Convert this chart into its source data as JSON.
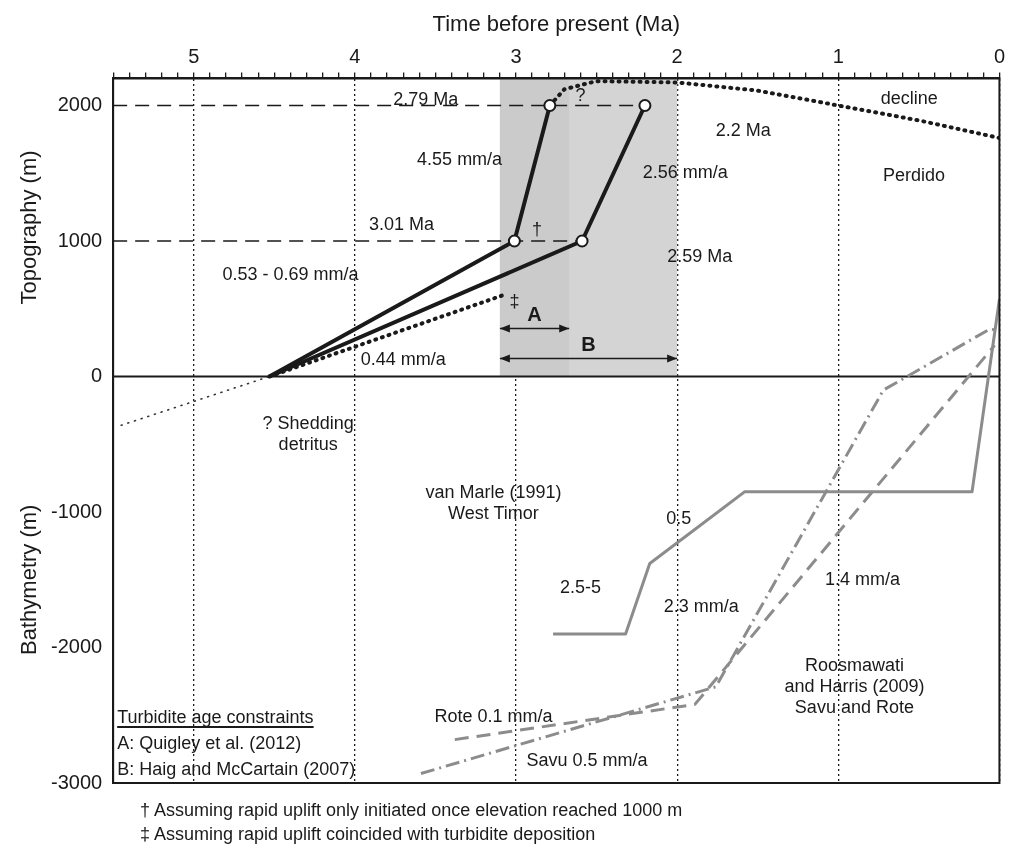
{
  "chart_data": {
    "type": "line",
    "xlabel": "Time before present (Ma)",
    "ylabel": "Topography (m)",
    "y2label": "Bathymetry (m)",
    "xlim": [
      5.5,
      0
    ],
    "xticks": [
      {
        "value": 5.5,
        "label": null
      },
      {
        "value": 5.4,
        "label": null
      },
      {
        "value": 5.3,
        "label": null
      },
      {
        "value": 5.2,
        "label": null
      },
      {
        "value": 5.1,
        "label": null
      },
      5,
      {
        "value": 4.9,
        "label": null
      },
      {
        "value": 4.8,
        "label": null
      },
      {
        "value": 4.7,
        "label": null
      },
      {
        "value": 4.6,
        "label": null
      },
      {
        "value": 4.5,
        "label": null
      },
      {
        "value": 4.4,
        "label": null
      },
      {
        "value": 4.3,
        "label": null
      },
      {
        "value": 4.2,
        "label": null
      },
      {
        "value": 4.1,
        "label": null
      },
      4,
      {
        "value": 3.9,
        "label": null
      },
      {
        "value": 3.8,
        "label": null
      },
      {
        "value": 3.7,
        "label": null
      },
      {
        "value": 3.6,
        "label": null
      },
      {
        "value": 3.5,
        "label": null
      },
      {
        "value": 3.4,
        "label": null
      },
      {
        "value": 3.3,
        "label": null
      },
      {
        "value": 3.2,
        "label": null
      },
      {
        "value": 3.1,
        "label": null
      },
      3,
      {
        "value": 2.9,
        "label": null
      },
      {
        "value": 2.8,
        "label": null
      },
      {
        "value": 2.7,
        "label": null
      },
      {
        "value": 2.6,
        "label": null
      },
      {
        "value": 2.5,
        "label": null
      },
      {
        "value": 2.4,
        "label": null
      },
      {
        "value": 2.3,
        "label": null
      },
      {
        "value": 2.2,
        "label": null
      },
      {
        "value": 2.1,
        "label": null
      },
      2,
      {
        "value": 1.9,
        "label": null
      },
      {
        "value": 1.8,
        "label": null
      },
      {
        "value": 1.7,
        "label": null
      },
      {
        "value": 1.6,
        "label": null
      },
      {
        "value": 1.5,
        "label": null
      },
      {
        "value": 1.4,
        "label": null
      },
      {
        "value": 1.3,
        "label": null
      },
      {
        "value": 1.2,
        "label": null
      },
      {
        "value": 1.1,
        "label": null
      },
      1,
      {
        "value": 0.9,
        "label": null
      },
      {
        "value": 0.8,
        "label": null
      },
      {
        "value": 0.7,
        "label": null
      },
      {
        "value": 0.6,
        "label": null
      },
      {
        "value": 0.5,
        "label": null
      },
      {
        "value": 0.4,
        "label": null
      },
      {
        "value": 0.3,
        "label": null
      },
      {
        "value": 0.2,
        "label": null
      },
      {
        "value": 0.1,
        "label": null
      },
      0
    ],
    "ylim": [
      -3000,
      2200
    ],
    "yticks": [
      -3000,
      -2000,
      -1000,
      0,
      1000,
      2000
    ],
    "grid": "x",
    "marker": "none",
    "legend": false,
    "series": [
      {
        "type": "line",
        "color": "#1a1a1a",
        "line_style": "solid",
        "x": [
          4.53,
          3.01,
          2.79
        ],
        "values": [
          0,
          1000,
          2000
        ]
      },
      {
        "type": "line",
        "color": "#1a1a1a",
        "line_style": "solid",
        "x": [
          4.53,
          2.59,
          2.2
        ],
        "values": [
          0,
          1000,
          2000
        ]
      },
      {
        "type": "line",
        "color": "#1a1a1a",
        "line_style": "dotted",
        "x": [
          4.53,
          3.08
        ],
        "values": [
          0,
          600
        ]
      },
      {
        "type": "line",
        "color": "#333333",
        "line_style": "dotted",
        "x": [
          5.45,
          4.53
        ],
        "values": [
          -360,
          0
        ]
      },
      {
        "type": "line",
        "color": "#1a1a1a",
        "line_style": "dotted",
        "x": [
          2.79,
          2.7,
          2.5,
          2.0,
          1.5,
          1.0,
          0.5,
          0
        ],
        "values": [
          2000,
          2120,
          2180,
          2170,
          2110,
          2000,
          1890,
          1760
        ]
      },
      {
        "type": "line",
        "color": "#8c8c8c",
        "line_style": "solid",
        "x": [
          2.77,
          2.32,
          2.17,
          1.58,
          0.17,
          0
        ],
        "values": [
          -1900,
          -1900,
          -1380,
          -850,
          -850,
          570
        ]
      },
      {
        "type": "line",
        "color": "#8c8c8c",
        "line_style": "dashed",
        "x": [
          3.38,
          1.89,
          0.03
        ],
        "values": [
          -2680,
          -2420,
          230
        ]
      },
      {
        "type": "line",
        "color": "#8c8c8c",
        "line_style": "dashdot",
        "x": [
          3.59,
          1.76,
          0.72,
          0.06,
          0
        ],
        "values": [
          -2930,
          -2290,
          -100,
          350,
          340
        ]
      },
      {
        "type": "scatter",
        "color": "#ffffff",
        "marker": "circle",
        "x": [
          3.01,
          2.79,
          2.59,
          2.2
        ],
        "values": [
          1000,
          2000,
          1000,
          2000
        ]
      }
    ],
    "ref_lines": [
      {
        "axis": "y",
        "value": 2000,
        "line_style": "dashed"
      },
      {
        "axis": "y",
        "value": 1000,
        "line_style": "dashed"
      },
      {
        "axis": "y",
        "value": 0,
        "line_style": "solid"
      }
    ],
    "bands": [
      {
        "axis": "x",
        "from": 3.1,
        "to": 2.67,
        "label": "A",
        "color": "#cbcbcb"
      },
      {
        "axis": "x",
        "from": 3.1,
        "to": 2.0,
        "label": "B",
        "color": "#d4d4d4"
      }
    ],
    "annotations": [
      "2.79 Ma",
      "3.01 Ma",
      "4.55 mm/a",
      "2.56 mm/a",
      "2.2 Ma",
      "2.59 Ma",
      "?",
      "decline",
      "Perdido",
      "†",
      "‡",
      "0.53 - 0.69 mm/a",
      "0.44 mm/a",
      "? Shedding\ndetritus",
      "van Marle (1991)\nWest Timor",
      "0.5",
      "2.5-5",
      "2.3 mm/a",
      "1.4 mm/a",
      "Rote 0.1 mm/a",
      "Savu 0.5 mm/a",
      "Roosmawati\nand Harris (2009)\nSavu and Rote",
      "Turbidite age constraints",
      "A: Quigley et al. (2012)",
      "B: Haig and McCartain (2007)",
      "† Assuming rapid uplift only initiated once elevation reached 1000 m",
      "‡ Assuming rapid uplift coincided with turbidite deposition"
    ]
  }
}
